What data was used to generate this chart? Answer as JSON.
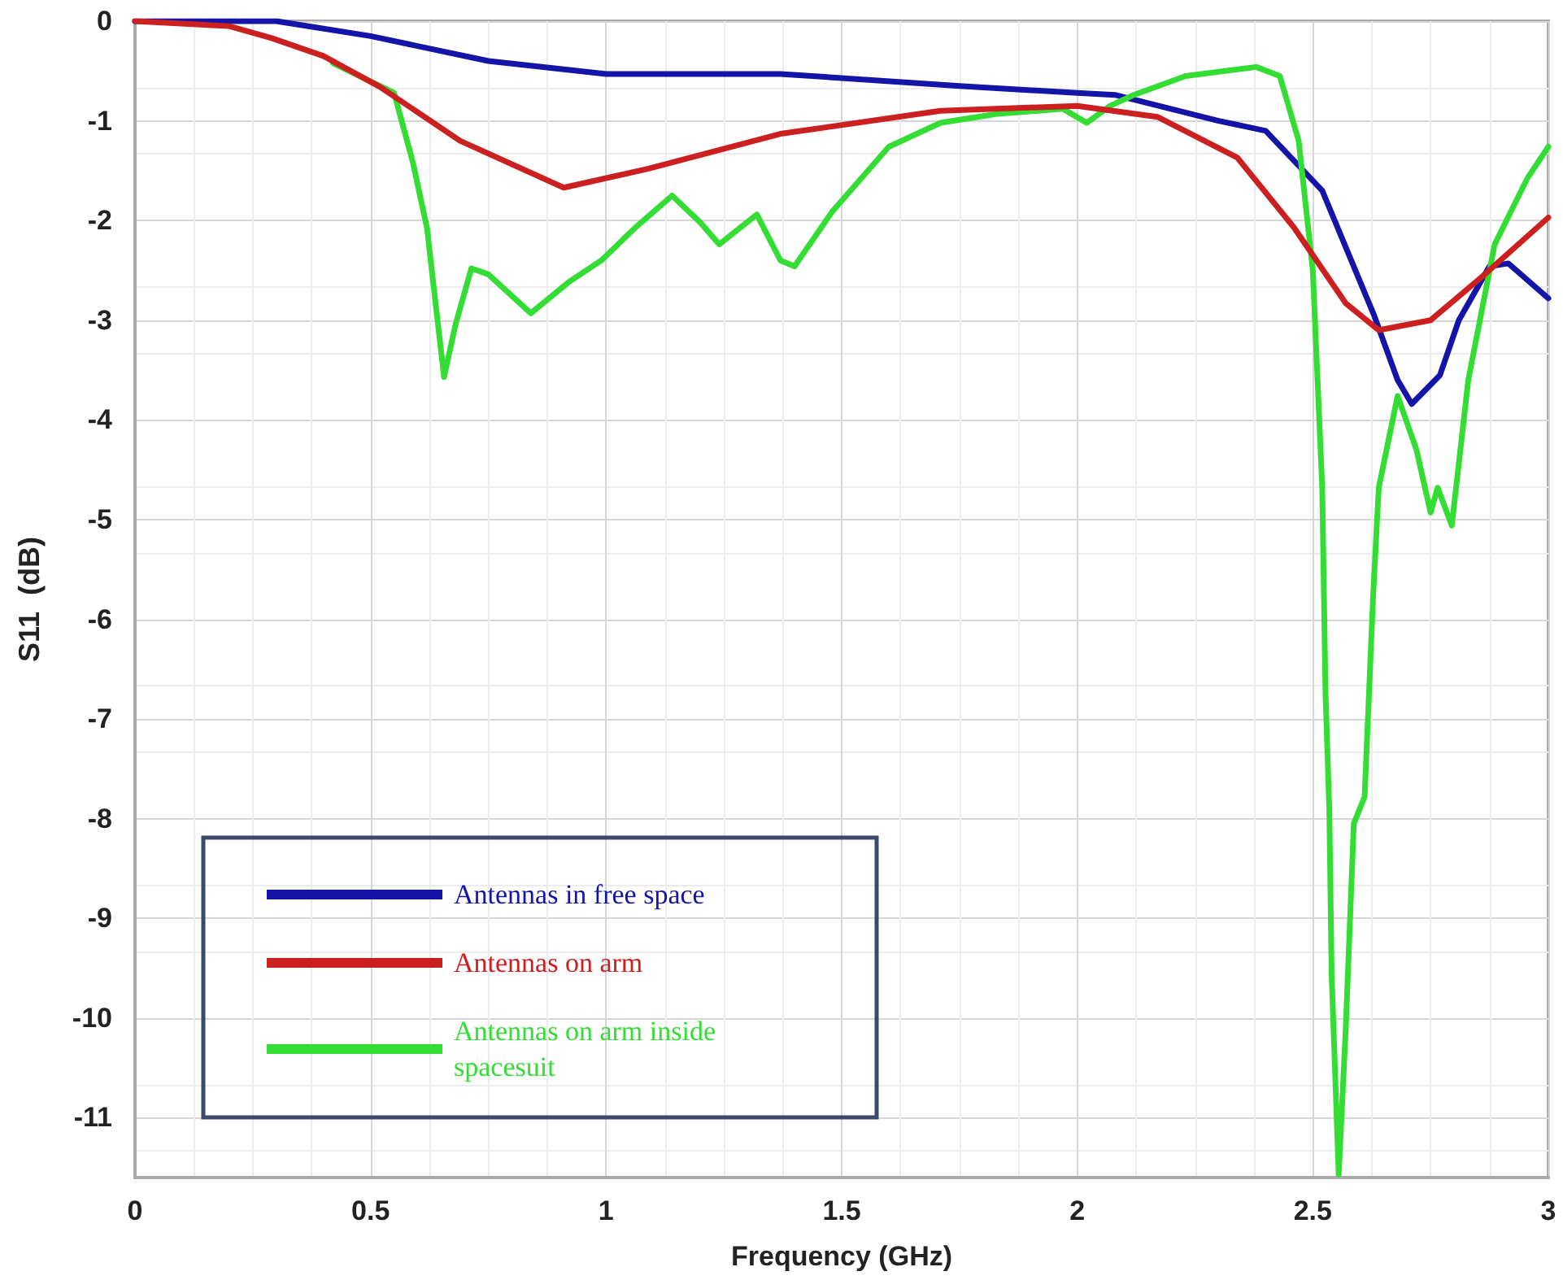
{
  "chart_data": {
    "type": "line",
    "xlabel": "Frequency (GHz)",
    "ylabel": "S11  (dB)",
    "xlim": [
      0,
      3
    ],
    "xticks": [
      0,
      0.5,
      1,
      1.5,
      2,
      2.5,
      3
    ],
    "ylim": [
      -11.6,
      0
    ],
    "yticks": [
      0,
      -1,
      -2,
      -3,
      -4,
      -5,
      -6,
      -7,
      -8,
      -9,
      -10,
      -11
    ],
    "grid": true,
    "legend": "bottom left",
    "marker": "none",
    "line_style": "solid",
    "series": [
      {
        "name": "Antennas in free space",
        "color": "#1414a8",
        "x": [
          0,
          0.3,
          0.5,
          0.75,
          1.0,
          1.37,
          1.75,
          2.0,
          2.08,
          2.3,
          2.4,
          2.52,
          2.63,
          2.68,
          2.71,
          2.77,
          2.81,
          2.875,
          2.915,
          3.0
        ],
        "values": [
          0,
          0,
          -0.15,
          -0.4,
          -0.53,
          -0.53,
          -0.65,
          -0.72,
          -0.74,
          -1.0,
          -1.1,
          -1.7,
          -2.95,
          -3.6,
          -3.84,
          -3.55,
          -3.0,
          -2.46,
          -2.43,
          -2.78
        ]
      },
      {
        "name": "Antennas on arm",
        "color": "#cc2020",
        "x": [
          0,
          0.2,
          0.29,
          0.4,
          0.52,
          0.69,
          0.91,
          1.09,
          1.37,
          1.71,
          2.0,
          2.17,
          2.34,
          2.46,
          2.57,
          2.64,
          2.75,
          2.86,
          3.0
        ],
        "values": [
          0,
          -0.05,
          -0.17,
          -0.35,
          -0.66,
          -1.2,
          -1.67,
          -1.48,
          -1.13,
          -0.9,
          -0.85,
          -0.96,
          -1.37,
          -2.07,
          -2.83,
          -3.1,
          -3.0,
          -2.56,
          -1.97
        ]
      },
      {
        "name": "Antennas on arm inside spacesuit",
        "color": "#33dd33",
        "x": [
          0.42,
          0.55,
          0.59,
          0.62,
          0.63,
          0.656,
          0.68,
          0.714,
          0.75,
          0.84,
          0.92,
          0.99,
          1.06,
          1.14,
          1.2,
          1.24,
          1.32,
          1.37,
          1.4,
          1.48,
          1.6,
          1.71,
          1.83,
          1.97,
          2.02,
          2.07,
          2.12,
          2.23,
          2.38,
          2.43,
          2.47,
          2.5,
          2.52,
          2.527,
          2.535,
          2.54,
          2.555,
          2.57,
          2.587,
          2.61,
          2.628,
          2.64,
          2.68,
          2.72,
          2.75,
          2.765,
          2.795,
          2.83,
          2.886,
          2.955,
          3.0
        ],
        "values": [
          -0.42,
          -0.72,
          -1.42,
          -2.08,
          -2.5,
          -3.57,
          -3.05,
          -2.48,
          -2.54,
          -2.93,
          -2.62,
          -2.4,
          -2.08,
          -1.75,
          -2.02,
          -2.24,
          -1.94,
          -2.4,
          -2.46,
          -1.91,
          -1.26,
          -1.02,
          -0.93,
          -0.88,
          -1.02,
          -0.85,
          -0.74,
          -0.55,
          -0.46,
          -0.55,
          -1.2,
          -2.5,
          -4.68,
          -6.75,
          -7.9,
          -9.57,
          -11.57,
          -10.1,
          -8.05,
          -7.78,
          -5.77,
          -4.68,
          -3.76,
          -4.3,
          -4.93,
          -4.68,
          -5.06,
          -3.6,
          -2.24,
          -1.58,
          -1.26
        ]
      }
    ]
  }
}
